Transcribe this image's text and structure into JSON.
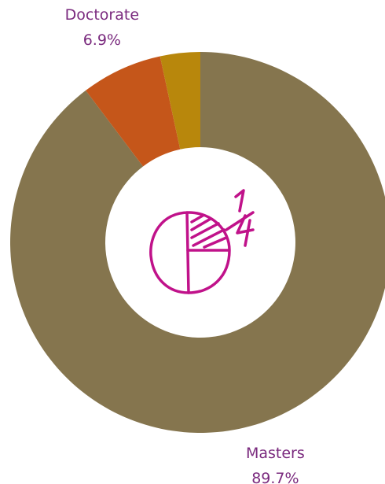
{
  "chart_data": {
    "type": "donut",
    "categories": [
      "Masters",
      "Doctorate",
      null
    ],
    "values": [
      89.7,
      6.9,
      3.4
    ],
    "value_labels": [
      "89.7%",
      "6.9%",
      null
    ],
    "colors": [
      "#85754e",
      "#c5561a",
      "#b8870c"
    ],
    "label_color": "#7a2a7e"
  }
}
